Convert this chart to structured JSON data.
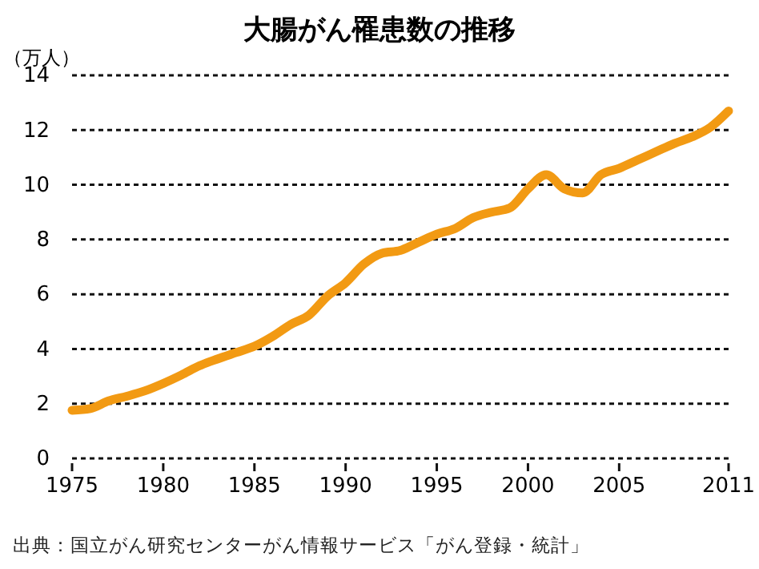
{
  "chart_data": {
    "type": "line",
    "title": "大腸がん罹患数の推移",
    "ylabel": "（万人）",
    "x": [
      1975,
      1976,
      1977,
      1978,
      1979,
      1980,
      1981,
      1982,
      1983,
      1984,
      1985,
      1986,
      1987,
      1988,
      1989,
      1990,
      1991,
      1992,
      1993,
      1994,
      1995,
      1996,
      1997,
      1998,
      1999,
      2000,
      2001,
      2002,
      2003,
      2004,
      2005,
      2006,
      2007,
      2008,
      2009,
      2010,
      2011
    ],
    "series": [
      {
        "color": "#f29a13",
        "values": [
          1.76,
          1.82,
          2.1,
          2.27,
          2.47,
          2.74,
          3.05,
          3.39,
          3.64,
          3.87,
          4.1,
          4.46,
          4.9,
          5.24,
          5.93,
          6.42,
          7.1,
          7.5,
          7.6,
          7.9,
          8.2,
          8.4,
          8.8,
          9.0,
          9.15,
          9.85,
          10.37,
          9.85,
          9.7,
          10.37,
          10.6,
          10.9,
          11.2,
          11.5,
          11.75,
          12.1,
          12.7
        ]
      }
    ],
    "xlim": [
      1975,
      2011
    ],
    "xticks": [
      1975,
      1980,
      1985,
      1990,
      1995,
      2000,
      2005,
      2011
    ],
    "ylim": [
      0,
      14
    ],
    "yticks": [
      0,
      2,
      4,
      6,
      8,
      10,
      12,
      14
    ],
    "grid": "y",
    "line_style": "solid",
    "annotations": [
      "出典：国立がん研究センターがん情報サービス「がん登録・統計」"
    ]
  }
}
